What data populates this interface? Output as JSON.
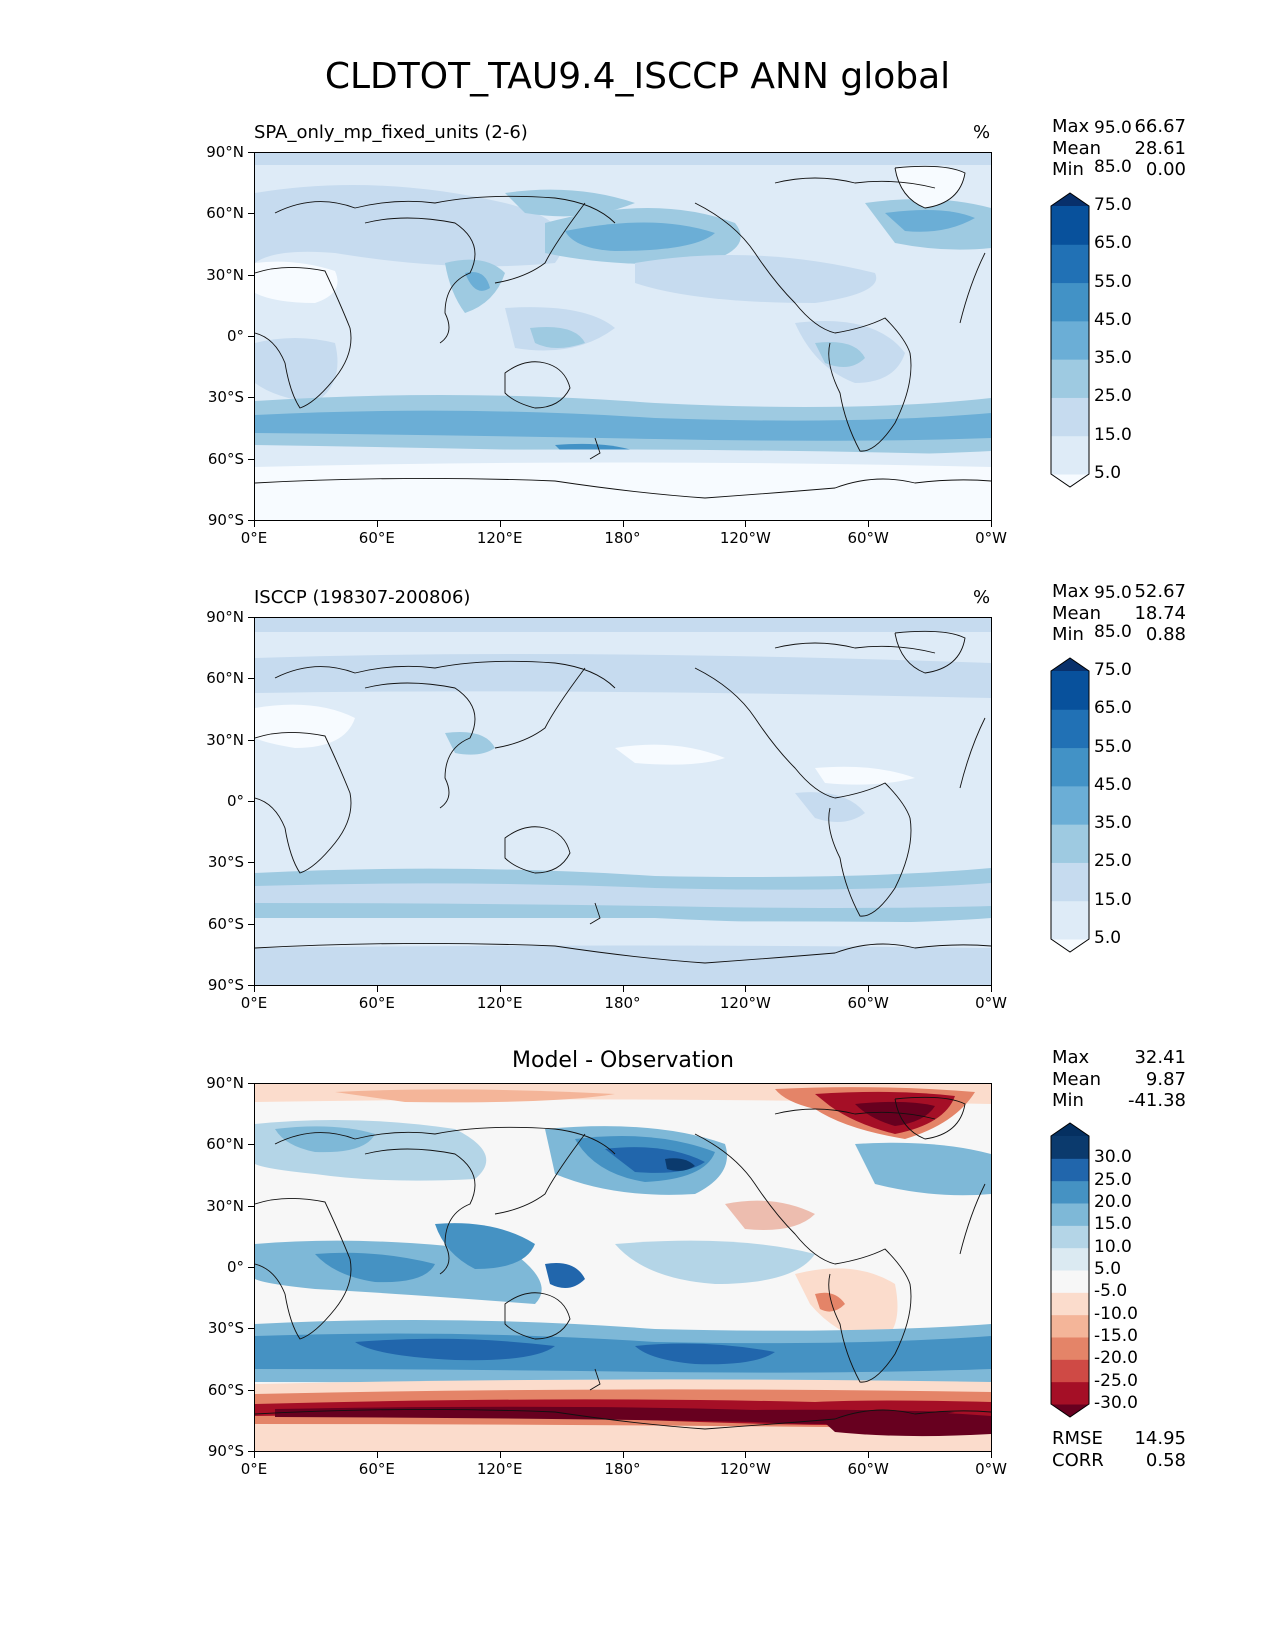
{
  "figure": {
    "title": "CLDTOT_TAU9.4_ISCCP ANN global"
  },
  "axes": {
    "lat_ticks": [
      "90°N",
      "60°N",
      "30°N",
      "0°",
      "30°S",
      "60°S",
      "90°S"
    ],
    "lon_ticks": [
      "0°E",
      "60°E",
      "120°E",
      "180°",
      "120°W",
      "60°W",
      "0°W"
    ]
  },
  "panels": [
    {
      "id": "test",
      "title": "SPA_only_mp_fixed_units (2-6)",
      "units": "%",
      "stats": {
        "max_label": "Max",
        "max": "66.67",
        "mean_label": "Mean",
        "mean": "28.61",
        "min_label": "Min",
        "min": "0.00"
      },
      "colorbar": {
        "labels": [
          "95.0",
          "85.0",
          "75.0",
          "65.0",
          "55.0",
          "45.0",
          "35.0",
          "25.0",
          "15.0",
          "5.0"
        ],
        "colors": [
          "#f7fbff",
          "#deebf7",
          "#c6dbef",
          "#9ecae1",
          "#6baed6",
          "#4292c6",
          "#2171b5",
          "#08519c",
          "#08306b"
        ]
      }
    },
    {
      "id": "ref",
      "title": "ISCCP (198307-200806)",
      "units": "%",
      "stats": {
        "max_label": "Max",
        "max": "52.67",
        "mean_label": "Mean",
        "mean": "18.74",
        "min_label": "Min",
        "min": "0.88"
      },
      "colorbar": {
        "labels": [
          "95.0",
          "85.0",
          "75.0",
          "65.0",
          "55.0",
          "45.0",
          "35.0",
          "25.0",
          "15.0",
          "5.0"
        ],
        "colors": [
          "#f7fbff",
          "#deebf7",
          "#c6dbef",
          "#9ecae1",
          "#6baed6",
          "#4292c6",
          "#2171b5",
          "#08519c",
          "#08306b"
        ]
      }
    },
    {
      "id": "diff",
      "title": "Model - Observation",
      "stats": {
        "max_label": "Max",
        "max": "32.41",
        "mean_label": "Mean",
        "mean": "9.87",
        "min_label": "Min",
        "min": "-41.38"
      },
      "metrics": {
        "rmse_label": "RMSE",
        "rmse": "14.95",
        "corr_label": "CORR",
        "corr": "0.58"
      },
      "colorbar": {
        "labels": [
          "30.0",
          "25.0",
          "20.0",
          "15.0",
          "10.0",
          "5.0",
          "-5.0",
          "-10.0",
          "-15.0",
          "-20.0",
          "-25.0",
          "-30.0"
        ],
        "colors": [
          "#67001f",
          "#a50f26",
          "#cf4a45",
          "#e48468",
          "#f4b599",
          "#fbdccc",
          "#f7f7f7",
          "#dbeaf2",
          "#b4d5e7",
          "#7eb8d7",
          "#4592c3",
          "#2166ac",
          "#0b3a6d",
          "#053061"
        ]
      }
    }
  ]
}
